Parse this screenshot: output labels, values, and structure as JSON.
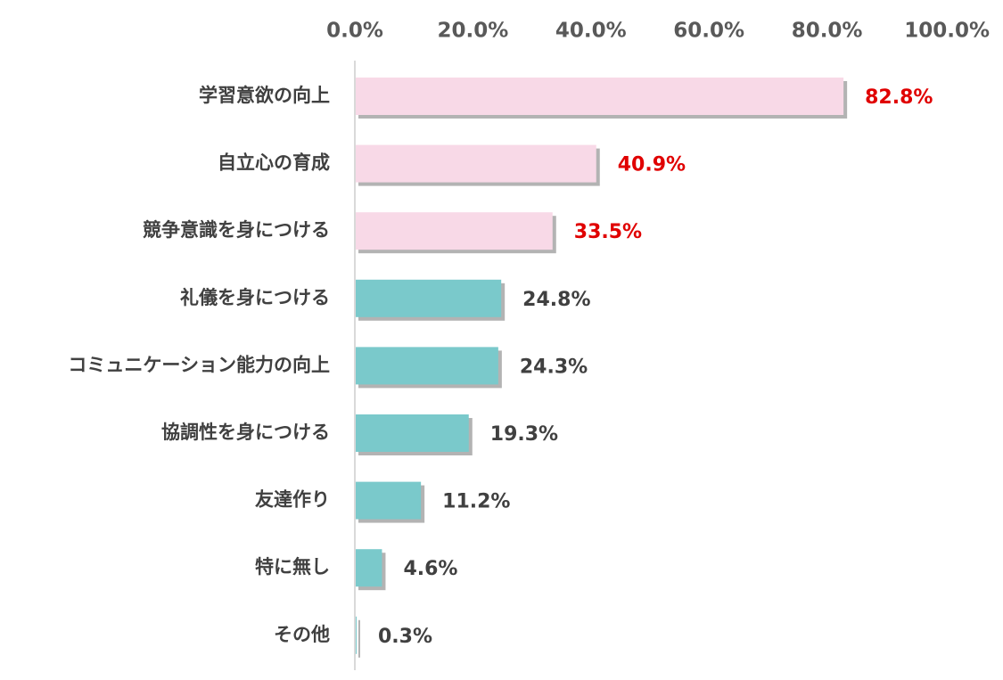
{
  "chart_data": {
    "type": "bar",
    "orientation": "horizontal",
    "title": "",
    "xlabel": "",
    "ylabel": "",
    "xlim": [
      0,
      100
    ],
    "x_ticks": [
      0,
      20,
      40,
      60,
      80,
      100
    ],
    "x_tick_labels": [
      "0.0%",
      "20.0%",
      "40.0%",
      "60.0%",
      "80.0%",
      "100.0%"
    ],
    "x_axis_position": "top",
    "grid": false,
    "legend": "none",
    "categories": [
      "学習意欲の向上",
      "自立心の育成",
      "競争意識を身につける",
      "礼儀を身につける",
      "コミュニケーション能力の向上",
      "協調性を身につける",
      "友達作り",
      "特に無し",
      "その他"
    ],
    "values": [
      82.8,
      40.9,
      33.5,
      24.8,
      24.3,
      19.3,
      11.2,
      4.6,
      0.3
    ],
    "value_labels": [
      "82.8%",
      "40.9%",
      "33.5%",
      "24.8%",
      "24.3%",
      "19.3%",
      "11.2%",
      "4.6%",
      "0.3%"
    ],
    "highlight": [
      true,
      true,
      true,
      false,
      false,
      false,
      false,
      false,
      false
    ],
    "colors": {
      "highlight_bar": "#f8d9e7",
      "normal_bar": "#7ac9cb",
      "highlight_label": "#e00000",
      "normal_label": "#404040",
      "bar_shadow": "#b3b3b3",
      "axis_line": "#d9d9d9"
    }
  }
}
